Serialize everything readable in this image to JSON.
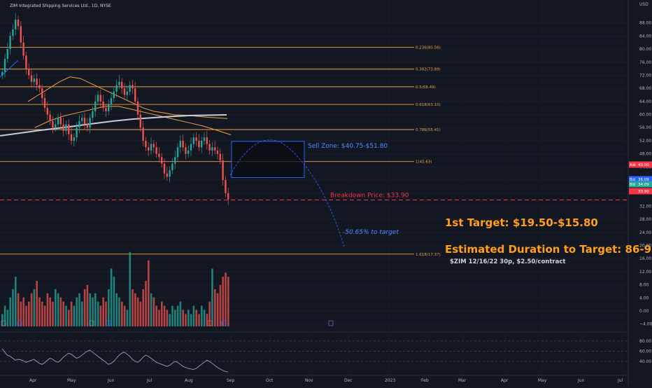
{
  "header": {
    "title": "ZIM Integrated Shipping Services Ltd., 1D, NYSE",
    "currency": "USD"
  },
  "chart_data": {
    "type": "candlestick",
    "price_axis_ticks": [
      88.0,
      84.0,
      80.0,
      76.0,
      72.0,
      68.0,
      64.0,
      60.0,
      56.0,
      52.0,
      48.0,
      44.0,
      40.0,
      36.0,
      32.0,
      28.0,
      24.0,
      20.0,
      16.0,
      12.0,
      8.0,
      4.0,
      0.0,
      -4.0
    ],
    "price_axis_tick_labels": [
      "88.00",
      "84.00",
      "80.00",
      "76.00",
      "72.00",
      "68.00",
      "64.00",
      "60.00",
      "56.00",
      "52.00",
      "48.00",
      "44.00",
      "40.00",
      "36.00",
      "32.00",
      "28.00",
      "24.00",
      "20.00",
      "16.00",
      "12.00",
      "8.00",
      "4.00",
      "0.00",
      "−4.00"
    ],
    "ylim": [
      -6,
      92
    ],
    "x_tick_labels": [
      "Apr",
      "May",
      "Jun",
      "Jul",
      "Aug",
      "Sep",
      "Oct",
      "Nov",
      "Dec",
      "2023",
      "Feb",
      "Mar",
      "Apr",
      "May",
      "Jun",
      "Jul"
    ],
    "candles_close": [
      73,
      77,
      80,
      84,
      86,
      89,
      87,
      82,
      78,
      74,
      72,
      70,
      71,
      69,
      68,
      65,
      62,
      60,
      58,
      56,
      57,
      59,
      57,
      55,
      57,
      54,
      52,
      53,
      56,
      58,
      59,
      57,
      56,
      59,
      61,
      64,
      66,
      64,
      62,
      61,
      63,
      65,
      67,
      69,
      70,
      68,
      66,
      67,
      69,
      68,
      64,
      60,
      56,
      52,
      50,
      49,
      51,
      50,
      48,
      47,
      45,
      42,
      41,
      43,
      45,
      47,
      50,
      52,
      50,
      48,
      49,
      51,
      53,
      52,
      50,
      52,
      53,
      51,
      49,
      50,
      49,
      48,
      46,
      40,
      36,
      34.09
    ],
    "series": [
      {
        "name": "",
        "values": [
          64,
          66,
          68,
          70,
          71.5,
          71,
          69.5,
          68,
          66.5,
          65,
          63.5,
          62,
          61,
          60.5,
          59.9,
          59.8,
          59.5,
          59.2,
          59,
          58.8
        ]
      },
      {
        "name": "",
        "values": [
          56,
          58,
          59.5,
          60.5,
          61.5,
          62.5,
          62.5,
          61.5,
          60.5,
          59.5,
          58.5,
          57.5,
          56.5,
          55.2,
          53.8
        ]
      },
      {
        "name": "",
        "values": [
          53.5,
          54.3,
          55.1,
          55.8,
          56.5,
          57.3,
          58.0,
          58.6,
          59.0,
          59.4,
          59.7,
          59.8,
          59.9
        ]
      }
    ],
    "fib_levels": [
      {
        "label": "0.236(80.56)",
        "value": 80.56
      },
      {
        "label": "0.382(73.89)",
        "value": 73.89
      },
      {
        "label": "0.5(68.49)",
        "value": 68.49
      },
      {
        "label": "0.618(63.10)",
        "value": 63.1
      },
      {
        "label": "0.786(55.41)",
        "value": 55.41
      },
      {
        "label": "1(45.63)",
        "value": 45.63
      },
      {
        "label": "1.618(17.37)",
        "value": 17.37
      }
    ],
    "sell_zone": {
      "label": "Sell Zone: $40.75-$51.80",
      "low": 40.75,
      "high": 51.8
    },
    "breakdown": {
      "label": "Breakdown Price: $33.90",
      "value": 33.9
    },
    "projection_label": "-50.65% to target",
    "price_badges": [
      {
        "tag": "Ask",
        "value": "40.00"
      },
      {
        "tag": "Bid",
        "value": "36.09"
      },
      {
        "tag": "Bid",
        "value": "34.09"
      },
      {
        "tag": "",
        "value": "33.90"
      }
    ],
    "volume": [
      3,
      5,
      4,
      7,
      9,
      12,
      8,
      6,
      7,
      5,
      6,
      8,
      9,
      11,
      7,
      6,
      5,
      8,
      7,
      6,
      9,
      8,
      7,
      6,
      5,
      4,
      6,
      5,
      7,
      8,
      6,
      9,
      10,
      8,
      7,
      8,
      6,
      5,
      7,
      6,
      9,
      14,
      12,
      8,
      7,
      6,
      5,
      4,
      18,
      9,
      8,
      7,
      6,
      9,
      11,
      16,
      8,
      7,
      5,
      4,
      6,
      5,
      4,
      3,
      5,
      4,
      5,
      6,
      4,
      3,
      4,
      3,
      5,
      4,
      3,
      5,
      4,
      3,
      6,
      14,
      9,
      8,
      10,
      12,
      13,
      12
    ],
    "rsi_ticks": [
      80,
      60,
      40
    ],
    "rsi_tick_labels": [
      "80.00",
      "60.00",
      "40.00"
    ],
    "rsi": [
      65,
      58,
      52,
      50,
      46,
      42,
      44,
      43,
      41,
      38,
      40,
      42,
      44,
      40,
      36,
      34,
      37,
      42,
      46,
      44,
      40,
      38,
      42,
      48,
      52,
      56,
      54,
      50,
      46,
      48,
      52,
      56,
      60,
      62,
      58,
      54,
      50,
      46,
      42,
      38,
      34,
      36,
      40,
      46,
      52,
      56,
      58,
      54,
      50,
      44,
      40,
      38,
      42,
      48,
      52,
      50,
      46,
      42,
      38,
      36,
      34,
      32,
      30,
      32,
      36,
      40,
      38,
      34,
      30,
      28,
      26,
      25,
      24,
      26,
      30,
      34,
      38,
      42,
      40,
      36,
      32,
      28,
      25,
      22,
      20,
      19
    ]
  },
  "notes": {
    "target": "1st Target: $19.50-$15.80",
    "duration": "Estimated Duration to Target: 86-91d",
    "options": "$ZIM 12/16/22 30p, $2.50/contract"
  },
  "colors": {
    "background": "#131722",
    "up": "#26a69a",
    "down": "#ef5350",
    "fib": "#f0a045",
    "sell_zone": "#2962ff",
    "breakdown": "#f23645",
    "target_text": "#ff9f1c",
    "ma_long": "#c8ccd8",
    "ma_short": "#f0a045",
    "ma_blue": "#2962ff",
    "rsi": "#9aa0b5"
  }
}
